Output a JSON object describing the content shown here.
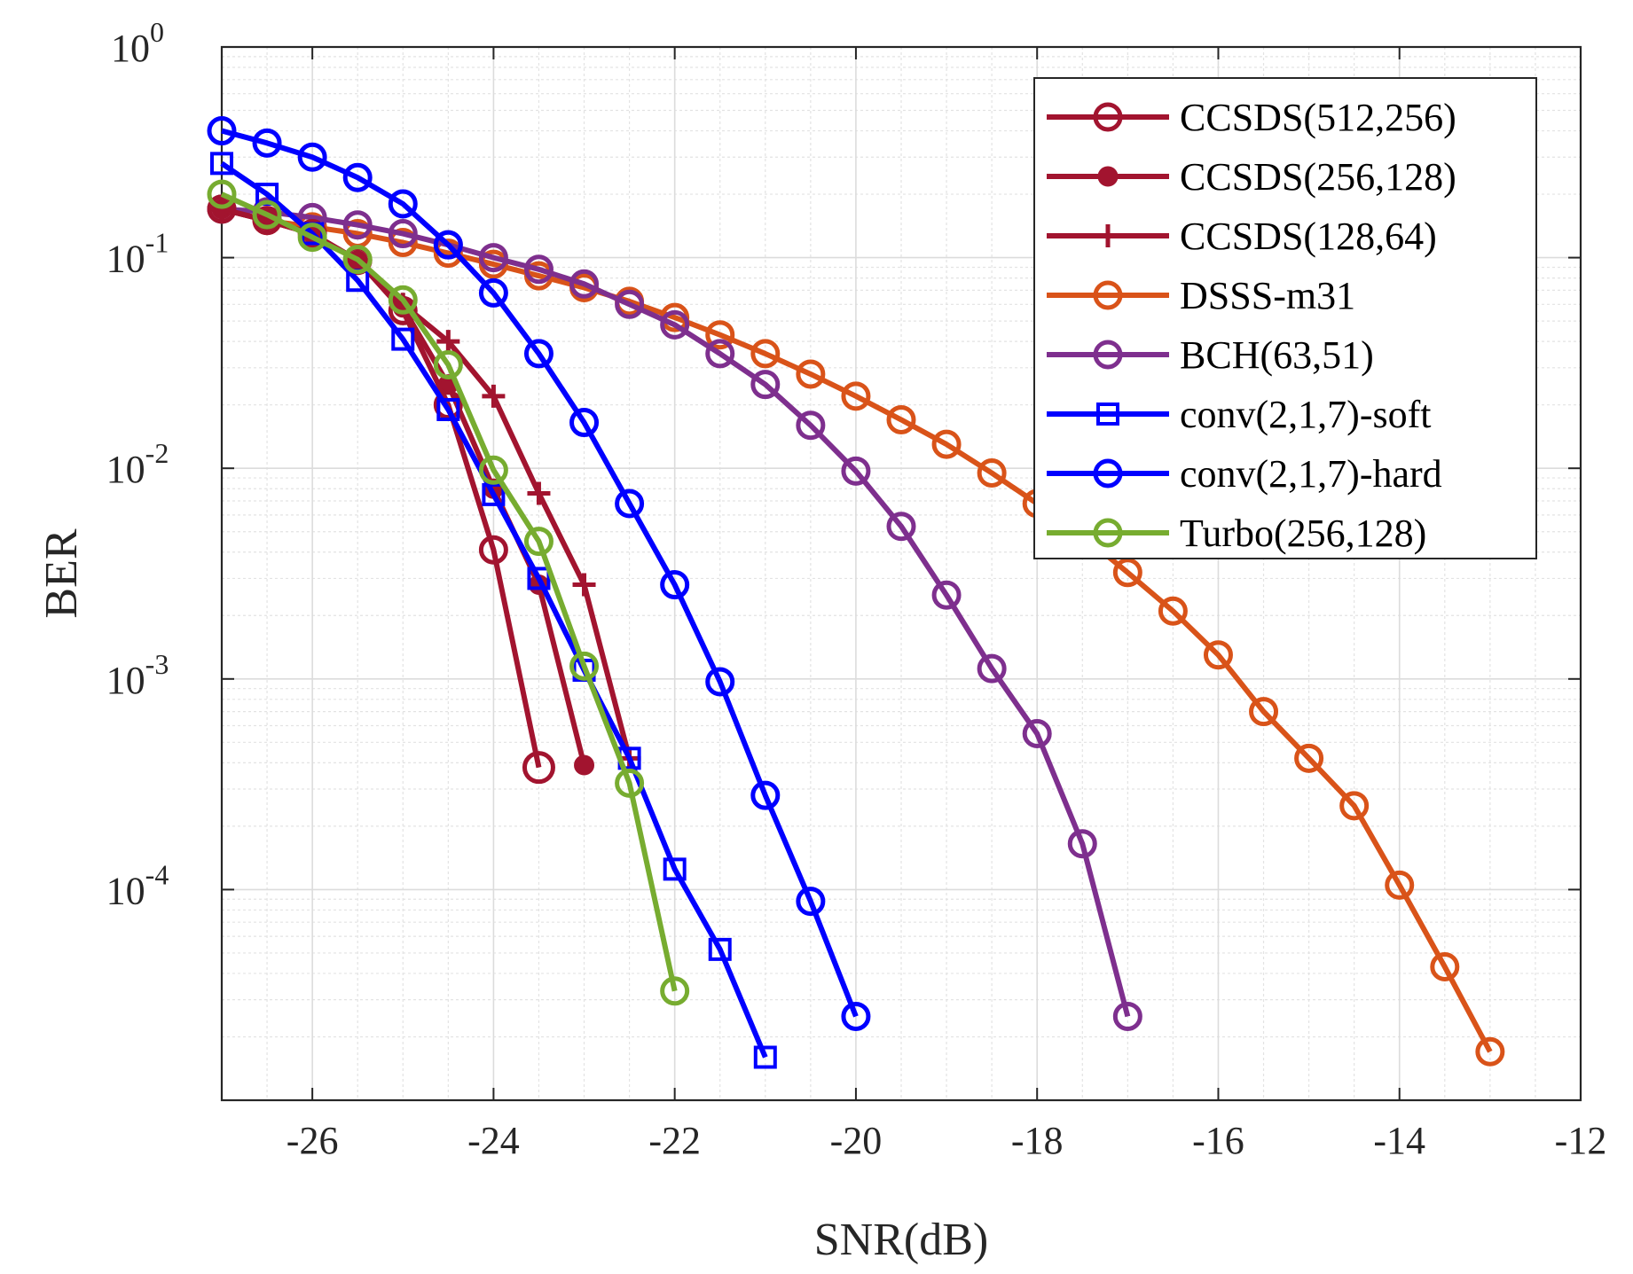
{
  "chart_data": {
    "type": "line",
    "xlabel": "SNR(dB)",
    "ylabel": "BER",
    "xlim": [
      -27,
      -12
    ],
    "ylim": [
      1e-05,
      1
    ],
    "y_scale": "log",
    "x_ticks": [
      -26,
      -24,
      -22,
      -20,
      -18,
      -16,
      -14,
      -12
    ],
    "x_tick_labels": [
      "-26",
      "-24",
      "-22",
      "-20",
      "-18",
      "-16",
      "-14",
      "-12"
    ],
    "y_ticks": [
      {
        "value": 1,
        "base": "10",
        "exp": "0"
      },
      {
        "value": 0.1,
        "base": "10",
        "exp": "-1"
      },
      {
        "value": 0.01,
        "base": "10",
        "exp": "-2"
      },
      {
        "value": 0.001,
        "base": "10",
        "exp": "-3"
      },
      {
        "value": 0.0001,
        "base": "10",
        "exp": "-4"
      }
    ],
    "grid": true,
    "legend_position": "top-right",
    "series": [
      {
        "name": "CCSDS(512,256)",
        "color": "#a2142f",
        "marker": "circle-open",
        "big_last_marker": true,
        "x": [
          -27,
          -26.5,
          -26,
          -25.5,
          -25,
          -24.5,
          -24,
          -23.5
        ],
        "y": [
          0.17,
          0.15,
          0.13,
          0.097,
          0.056,
          0.02,
          0.0041,
          0.00038
        ]
      },
      {
        "name": "CCSDS(256,128)",
        "color": "#a2142f",
        "marker": "dot",
        "x": [
          -27,
          -26.5,
          -26,
          -25.5,
          -25,
          -24.5,
          -24,
          -23.5,
          -23
        ],
        "y": [
          0.17,
          0.15,
          0.13,
          0.097,
          0.058,
          0.025,
          0.008,
          0.0028,
          0.00039
        ]
      },
      {
        "name": "CCSDS(128,64)",
        "color": "#a2142f",
        "marker": "plus",
        "x": [
          -27,
          -26.5,
          -26,
          -25.5,
          -25,
          -24.5,
          -24,
          -23.5,
          -23,
          -22.5
        ],
        "y": [
          0.17,
          0.15,
          0.13,
          0.097,
          0.06,
          0.04,
          0.022,
          0.0076,
          0.0028,
          0.00042
        ]
      },
      {
        "name": "DSSS-m31",
        "color": "#d95319",
        "marker": "circle-open",
        "x": [
          -27,
          -26.5,
          -26,
          -25.5,
          -25,
          -24.5,
          -24,
          -23.5,
          -23,
          -22.5,
          -22,
          -21.5,
          -21,
          -20.5,
          -20,
          -19.5,
          -19,
          -18.5,
          -18,
          -17.5,
          -17,
          -16.5,
          -16,
          -15.5,
          -15,
          -14.5,
          -14,
          -13.5,
          -13
        ],
        "y": [
          0.17,
          0.15,
          0.14,
          0.13,
          0.118,
          0.105,
          0.093,
          0.082,
          0.072,
          0.062,
          0.052,
          0.043,
          0.035,
          0.028,
          0.022,
          0.017,
          0.013,
          0.0095,
          0.0068,
          0.0048,
          0.0032,
          0.0021,
          0.0013,
          0.0007,
          0.00042,
          0.00025,
          0.000105,
          4.3e-05,
          1.7e-05
        ]
      },
      {
        "name": "BCH(63,51)",
        "color": "#7e2f8e",
        "marker": "circle-open",
        "x": [
          -27,
          -26.5,
          -26,
          -25.5,
          -25,
          -24.5,
          -24,
          -23.5,
          -23,
          -22.5,
          -22,
          -21.5,
          -21,
          -20.5,
          -20,
          -19.5,
          -19,
          -18.5,
          -18,
          -17.5,
          -17
        ],
        "y": [
          0.17,
          0.165,
          0.155,
          0.143,
          0.13,
          0.115,
          0.1,
          0.088,
          0.075,
          0.06,
          0.048,
          0.035,
          0.025,
          0.016,
          0.0097,
          0.0053,
          0.0025,
          0.00112,
          0.00055,
          0.000165,
          2.5e-05
        ]
      },
      {
        "name": "conv(2,1,7)-soft",
        "color": "#0000ff",
        "marker": "square-open",
        "x": [
          -27,
          -26.5,
          -26,
          -25.5,
          -25,
          -24.5,
          -24,
          -23.5,
          -23,
          -22.5,
          -22,
          -21.5,
          -21
        ],
        "y": [
          0.28,
          0.2,
          0.13,
          0.078,
          0.041,
          0.019,
          0.0075,
          0.003,
          0.0011,
          0.00042,
          0.000125,
          5.2e-05,
          1.6e-05
        ]
      },
      {
        "name": "conv(2,1,7)-hard",
        "color": "#0000ff",
        "marker": "circle-open",
        "x": [
          -27,
          -26.5,
          -26,
          -25.5,
          -25,
          -24.5,
          -24,
          -23.5,
          -23,
          -22.5,
          -22,
          -21.5,
          -21,
          -20.5,
          -20
        ],
        "y": [
          0.4,
          0.35,
          0.3,
          0.24,
          0.18,
          0.115,
          0.068,
          0.035,
          0.0165,
          0.0068,
          0.0028,
          0.00097,
          0.00028,
          8.8e-05,
          2.5e-05
        ]
      },
      {
        "name": "Turbo(256,128)",
        "color": "#77ac30",
        "marker": "circle-open",
        "x": [
          -27,
          -26.5,
          -26,
          -25.5,
          -25,
          -24.5,
          -24,
          -23.5,
          -23,
          -22.5,
          -22
        ],
        "y": [
          0.2,
          0.16,
          0.125,
          0.098,
          0.063,
          0.031,
          0.0098,
          0.0045,
          0.00115,
          0.00032,
          3.3e-05
        ]
      }
    ]
  }
}
